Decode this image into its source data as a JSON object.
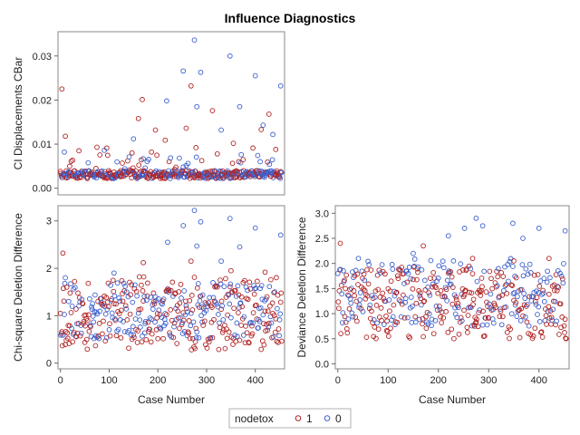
{
  "chart_data": {
    "type": "scatter",
    "title": "Influence Diagnostics",
    "legend": {
      "title": "nodetox",
      "position": "bottom-center",
      "entries": [
        {
          "name": "1",
          "color": "#b22222"
        },
        {
          "name": "0",
          "color": "#3a5fcd"
        }
      ]
    },
    "panels": [
      {
        "id": "cbar",
        "ylabel": "CI Displacements CBar",
        "xlabel": "",
        "xlim": [
          -5,
          460
        ],
        "ylim": [
          -0.0015,
          0.0355
        ],
        "yticks": [
          0.0,
          0.01,
          0.02,
          0.03
        ],
        "ytick_labels": [
          "0.00",
          "0.01",
          "0.02",
          "0.03"
        ],
        "xticks": [],
        "outliers": [
          {
            "x": 3,
            "y": 0.0225,
            "s": "1"
          },
          {
            "x": 10,
            "y": 0.0118,
            "s": "1"
          },
          {
            "x": 38,
            "y": 0.0085,
            "s": "1"
          },
          {
            "x": 75,
            "y": 0.0093,
            "s": "1"
          },
          {
            "x": 95,
            "y": 0.0091,
            "s": "1"
          },
          {
            "x": 160,
            "y": 0.0158,
            "s": "1"
          },
          {
            "x": 168,
            "y": 0.0201,
            "s": "1"
          },
          {
            "x": 195,
            "y": 0.0132,
            "s": "1"
          },
          {
            "x": 215,
            "y": 0.0109,
            "s": "1"
          },
          {
            "x": 258,
            "y": 0.0136,
            "s": "1"
          },
          {
            "x": 268,
            "y": 0.0232,
            "s": "1"
          },
          {
            "x": 278,
            "y": 0.0092,
            "s": "1"
          },
          {
            "x": 312,
            "y": 0.0176,
            "s": "1"
          },
          {
            "x": 322,
            "y": 0.0078,
            "s": "1"
          },
          {
            "x": 355,
            "y": 0.0102,
            "s": "1"
          },
          {
            "x": 375,
            "y": 0.0065,
            "s": "1"
          },
          {
            "x": 395,
            "y": 0.0091,
            "s": "1"
          },
          {
            "x": 412,
            "y": 0.0133,
            "s": "1"
          },
          {
            "x": 428,
            "y": 0.0168,
            "s": "1"
          },
          {
            "x": 442,
            "y": 0.0088,
            "s": "1"
          },
          {
            "x": 8,
            "y": 0.0082,
            "s": "0"
          },
          {
            "x": 90,
            "y": 0.0086,
            "s": "0"
          },
          {
            "x": 150,
            "y": 0.0112,
            "s": "0"
          },
          {
            "x": 170,
            "y": 0.0067,
            "s": "0"
          },
          {
            "x": 218,
            "y": 0.0198,
            "s": "0"
          },
          {
            "x": 252,
            "y": 0.0266,
            "s": "0"
          },
          {
            "x": 275,
            "y": 0.0336,
            "s": "0"
          },
          {
            "x": 280,
            "y": 0.0185,
            "s": "0"
          },
          {
            "x": 288,
            "y": 0.0263,
            "s": "0"
          },
          {
            "x": 330,
            "y": 0.0132,
            "s": "0"
          },
          {
            "x": 348,
            "y": 0.03,
            "s": "0"
          },
          {
            "x": 368,
            "y": 0.0185,
            "s": "0"
          },
          {
            "x": 400,
            "y": 0.0255,
            "s": "0"
          },
          {
            "x": 416,
            "y": 0.0143,
            "s": "0"
          },
          {
            "x": 436,
            "y": 0.0122,
            "s": "0"
          },
          {
            "x": 452,
            "y": 0.0232,
            "s": "0"
          }
        ]
      },
      {
        "id": "chisq",
        "ylabel": "Chi-square Deletion Difference",
        "xlabel": "Case Number",
        "xlim": [
          -5,
          460
        ],
        "ylim": [
          -0.12,
          3.32
        ],
        "yticks": [
          0,
          1,
          2,
          3
        ],
        "ytick_labels": [
          "0",
          "1",
          "2",
          "3"
        ],
        "xticks": [
          0,
          100,
          200,
          300,
          400
        ],
        "xtick_labels": [
          "0",
          "100",
          "200",
          "300",
          "400"
        ],
        "outliers": [
          {
            "x": 5,
            "y": 2.32,
            "s": "1"
          },
          {
            "x": 170,
            "y": 2.12,
            "s": "1"
          },
          {
            "x": 268,
            "y": 2.15,
            "s": "1"
          },
          {
            "x": 350,
            "y": 1.95,
            "s": "1"
          },
          {
            "x": 420,
            "y": 1.92,
            "s": "1"
          },
          {
            "x": 10,
            "y": 1.8,
            "s": "0"
          },
          {
            "x": 110,
            "y": 1.9,
            "s": "0"
          },
          {
            "x": 220,
            "y": 2.55,
            "s": "0"
          },
          {
            "x": 252,
            "y": 2.9,
            "s": "0"
          },
          {
            "x": 275,
            "y": 3.22,
            "s": "0"
          },
          {
            "x": 280,
            "y": 2.47,
            "s": "0"
          },
          {
            "x": 288,
            "y": 2.98,
            "s": "0"
          },
          {
            "x": 330,
            "y": 2.15,
            "s": "0"
          },
          {
            "x": 348,
            "y": 3.05,
            "s": "0"
          },
          {
            "x": 368,
            "y": 2.45,
            "s": "0"
          },
          {
            "x": 400,
            "y": 2.85,
            "s": "0"
          },
          {
            "x": 452,
            "y": 2.7,
            "s": "0"
          }
        ]
      },
      {
        "id": "deviance",
        "ylabel": "Deviance Deletion Difference",
        "xlabel": "Case Number",
        "xlim": [
          -5,
          460
        ],
        "ylim": [
          -0.1,
          3.15
        ],
        "yticks": [
          0.0,
          0.5,
          1.0,
          1.5,
          2.0,
          2.5,
          3.0
        ],
        "ytick_labels": [
          "0.0",
          "0.5",
          "1.0",
          "1.5",
          "2.0",
          "2.5",
          "3.0"
        ],
        "xticks": [
          0,
          100,
          200,
          300,
          400
        ],
        "xtick_labels": [
          "0",
          "100",
          "200",
          "300",
          "400"
        ],
        "outliers": [
          {
            "x": 5,
            "y": 2.4,
            "s": "1"
          },
          {
            "x": 170,
            "y": 2.35,
            "s": "1"
          },
          {
            "x": 268,
            "y": 2.1,
            "s": "1"
          },
          {
            "x": 350,
            "y": 2.05,
            "s": "1"
          },
          {
            "x": 420,
            "y": 2.1,
            "s": "1"
          },
          {
            "x": 150,
            "y": 2.2,
            "s": "0"
          },
          {
            "x": 220,
            "y": 2.55,
            "s": "0"
          },
          {
            "x": 252,
            "y": 2.7,
            "s": "0"
          },
          {
            "x": 275,
            "y": 2.9,
            "s": "0"
          },
          {
            "x": 288,
            "y": 2.75,
            "s": "0"
          },
          {
            "x": 348,
            "y": 2.8,
            "s": "0"
          },
          {
            "x": 368,
            "y": 2.5,
            "s": "0"
          },
          {
            "x": 400,
            "y": 2.7,
            "s": "0"
          },
          {
            "x": 452,
            "y": 2.65,
            "s": "0"
          }
        ]
      }
    ],
    "n_cases": 455
  }
}
